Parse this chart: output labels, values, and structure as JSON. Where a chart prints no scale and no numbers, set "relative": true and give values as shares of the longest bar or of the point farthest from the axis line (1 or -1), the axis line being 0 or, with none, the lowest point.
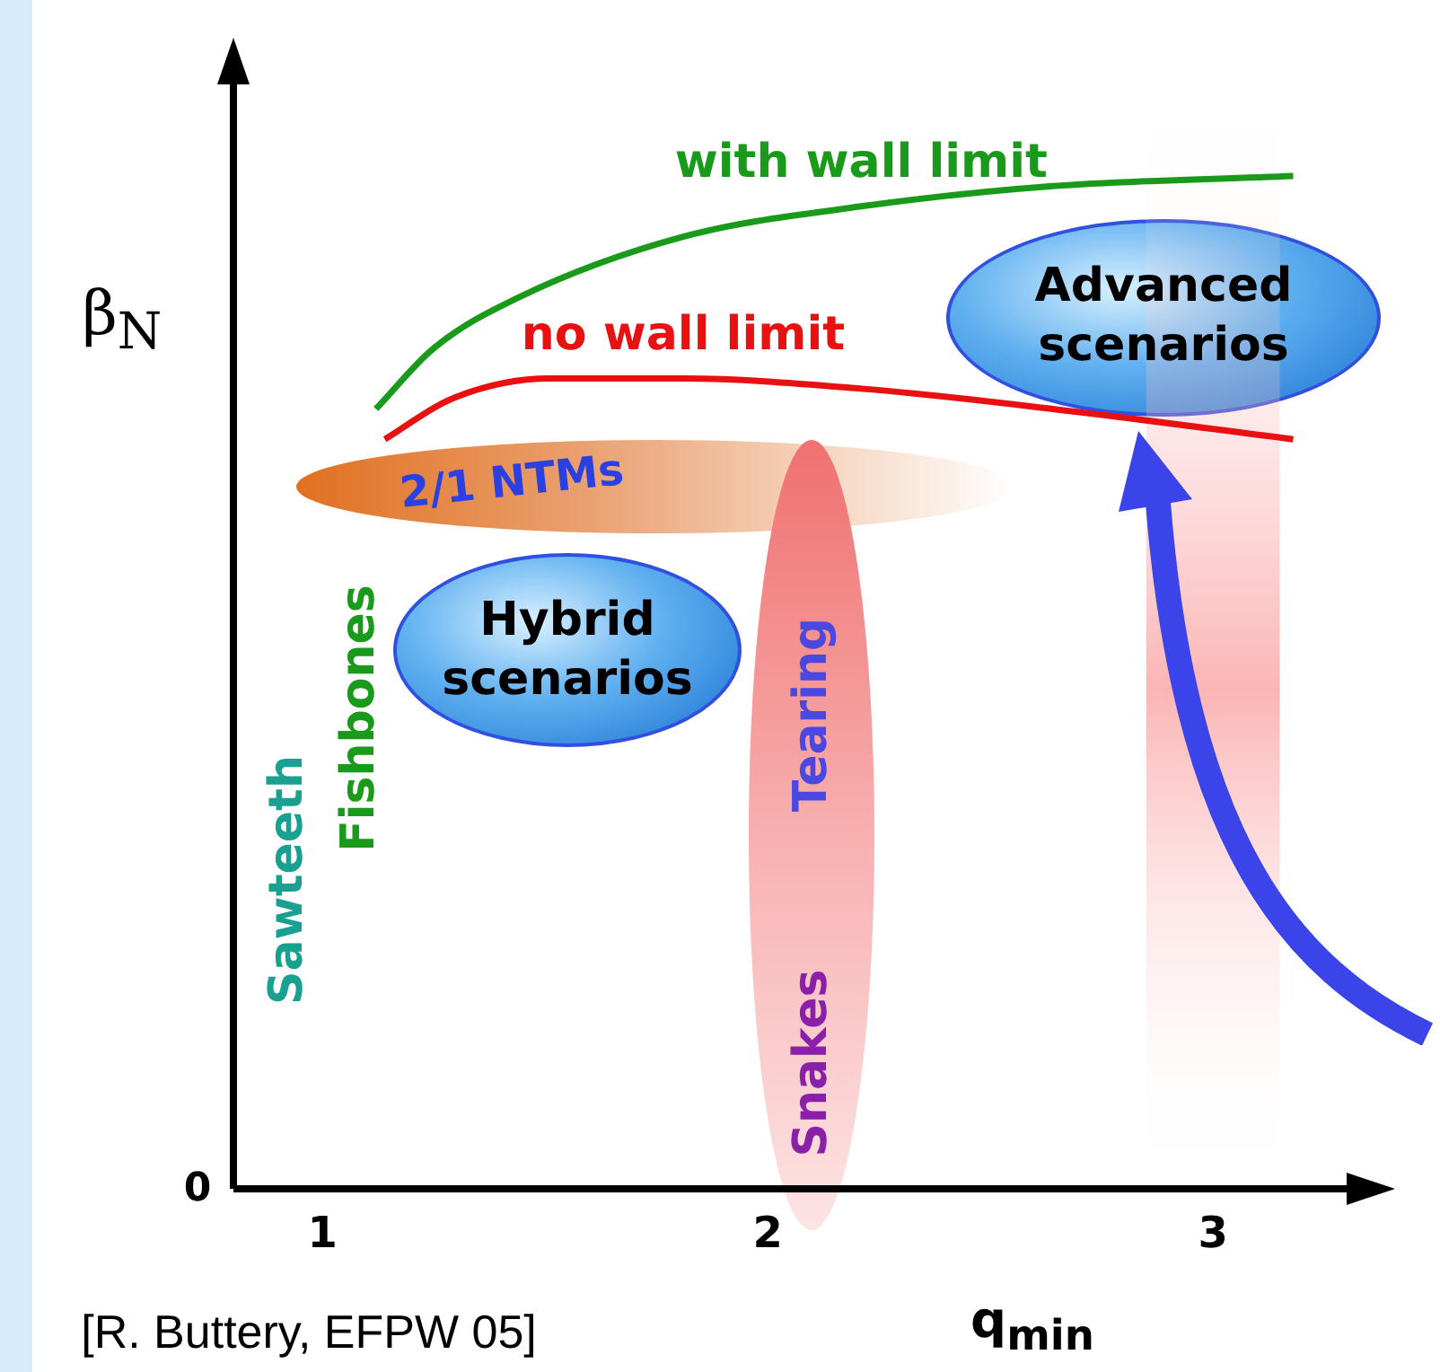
{
  "chart_data": {
    "type": "line",
    "relative": true,
    "xlabel": "q$_{min}$",
    "ylabel": "β$_{N}$",
    "xlim": [
      0.8,
      3.3
    ],
    "xticks": [
      1,
      2,
      3
    ],
    "grid": false,
    "legend": false,
    "marker": "none",
    "line_style": "solid",
    "series": [
      {
        "name": "with wall limit",
        "color": "#1a9a1a",
        "x": [
          1.12,
          1.25,
          1.44,
          1.81,
          2.21,
          2.64,
          3.18
        ],
        "values": [
          0.77,
          0.83,
          0.88,
          0.94,
          0.97,
          0.99,
          1
        ]
      },
      {
        "name": "no wall limit",
        "color": "#e81010",
        "x": [
          1.14,
          1.29,
          1.51,
          1.81,
          2.21,
          2.64,
          3.18
        ],
        "values": [
          0.74,
          0.78,
          0.8,
          0.8,
          0.79,
          0.77,
          0.74
        ]
      }
    ],
    "bands": [
      {
        "axis": "x",
        "from": 2.85,
        "to": 3.15,
        "color": "#f87878"
      }
    ],
    "annotations": [
      "Advanced scenarios",
      "Hybrid scenarios",
      "2/1 NTMs",
      "Tearing",
      "Snakes",
      "Sawteeth",
      "Fishbones",
      "[R. Buttery, EFPW 05]",
      "0"
    ]
  }
}
